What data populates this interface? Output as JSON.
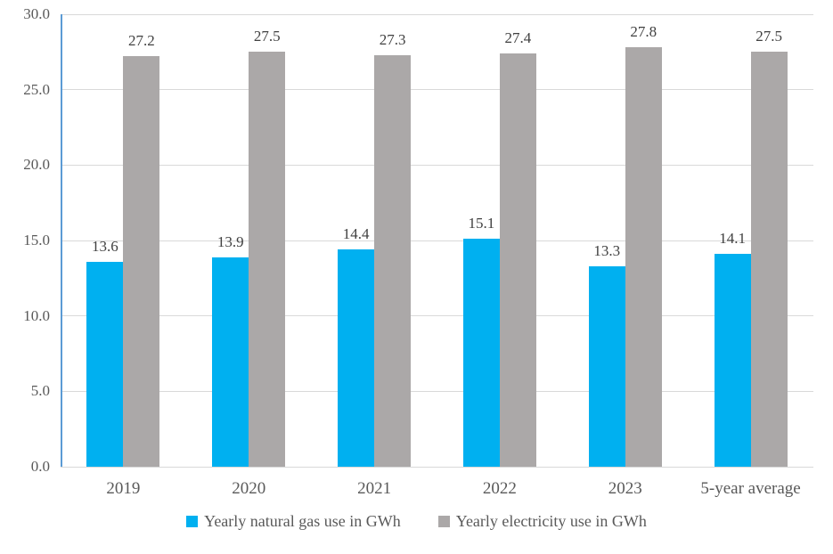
{
  "chart_data": {
    "type": "bar",
    "title": "",
    "xlabel": "",
    "ylabel": "",
    "categories": [
      "2019",
      "2020",
      "2021",
      "2022",
      "2023",
      "5-year average"
    ],
    "series": [
      {
        "key": "natural-gas",
        "name": "Yearly natural gas use in GWh",
        "color": "#00b0f0",
        "values": [
          13.6,
          13.9,
          14.4,
          15.1,
          13.3,
          14.1
        ]
      },
      {
        "key": "electricity",
        "name": "Yearly electricity use in GWh",
        "color": "#aba8a8",
        "values": [
          27.2,
          27.5,
          27.3,
          27.4,
          27.8,
          27.5
        ]
      }
    ],
    "y_axis": {
      "min": 0,
      "max": 30,
      "step": 5,
      "tick_labels": [
        "0.0",
        "5.0",
        "10.0",
        "15.0",
        "20.0",
        "25.0",
        "30.0"
      ]
    },
    "grid": true,
    "legend_position": "bottom",
    "data_labels": true
  },
  "colors": {
    "axis_line": "#5b9bd5",
    "gridline": "#d9d9d9",
    "tick_text": "#595959",
    "data_label_text": "#404040",
    "background": "#ffffff"
  }
}
